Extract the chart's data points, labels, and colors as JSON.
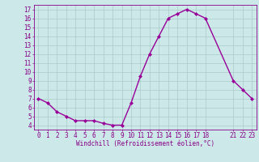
{
  "x": [
    0,
    1,
    2,
    3,
    4,
    5,
    6,
    7,
    8,
    9,
    10,
    11,
    12,
    13,
    14,
    15,
    16,
    17,
    18,
    21,
    22,
    23
  ],
  "y": [
    7.0,
    6.5,
    5.5,
    5.0,
    4.5,
    4.5,
    4.5,
    4.2,
    4.0,
    4.0,
    6.5,
    9.5,
    12.0,
    14.0,
    16.0,
    16.5,
    17.0,
    16.5,
    16.0,
    9.0,
    8.0,
    7.0
  ],
  "line_color": "#990099",
  "marker": "D",
  "marker_size": 2,
  "bg_color": "#cce8e8",
  "grid_color": "#aacccc",
  "xlabel": "Windchill (Refroidissement éolien,°C)",
  "tick_color": "#880088",
  "xlim": [
    -0.5,
    23.5
  ],
  "ylim": [
    3.5,
    17.5
  ],
  "yticks": [
    4,
    5,
    6,
    7,
    8,
    9,
    10,
    11,
    12,
    13,
    14,
    15,
    16,
    17
  ],
  "xticks": [
    0,
    1,
    2,
    3,
    4,
    5,
    6,
    7,
    8,
    9,
    10,
    11,
    12,
    13,
    14,
    15,
    16,
    17,
    18,
    21,
    22,
    23
  ],
  "line_width": 1.0,
  "font_size": 5.5
}
